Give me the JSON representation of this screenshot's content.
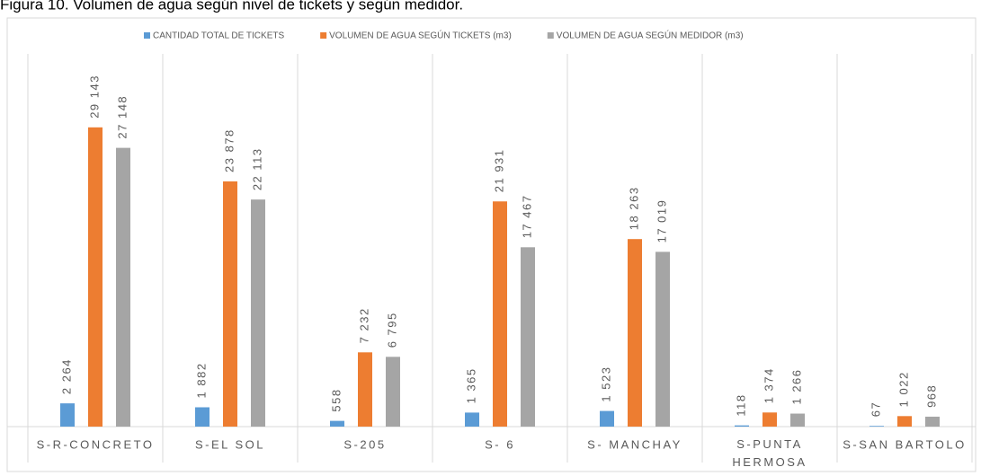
{
  "chart_data": {
    "type": "bar",
    "title": "Figura 10. Volumen de agua según nivel de tickets y según medidor.",
    "categories": [
      "S-R-CONCRETO",
      "S-EL SOL",
      "S-205",
      "S- 6",
      "S- MANCHAY",
      "S-PUNTA HERMOSA",
      "S-SAN BARTOLO"
    ],
    "series": [
      {
        "name": "CANTIDAD TOTAL DE TICKETS",
        "color": "#5b9bd5",
        "values": [
          2264,
          1882,
          558,
          1365,
          1523,
          118,
          67
        ],
        "value_labels": [
          "2 264",
          "1 882",
          "558",
          "1 365",
          "1 523",
          "118",
          "67"
        ]
      },
      {
        "name": "VOLUMEN DE AGUA SEGÚN TICKETS (m3)",
        "color": "#ed7d31",
        "values": [
          29143,
          23878,
          7232,
          21931,
          18263,
          1374,
          1022
        ],
        "value_labels": [
          "29 143",
          "23 878",
          "7 232",
          "21 931",
          "18 263",
          "1 374",
          "1 022"
        ]
      },
      {
        "name": "VOLUMEN DE AGUA SEGÚN MEDIDOR (m3)",
        "color": "#a5a5a5",
        "values": [
          27148,
          22113,
          6795,
          17467,
          17019,
          1266,
          968
        ],
        "value_labels": [
          "27 148",
          "22 113",
          "6 795",
          "17 467",
          "17 019",
          "1 266",
          "968"
        ]
      }
    ],
    "ylim": [
      0,
      30000
    ]
  }
}
